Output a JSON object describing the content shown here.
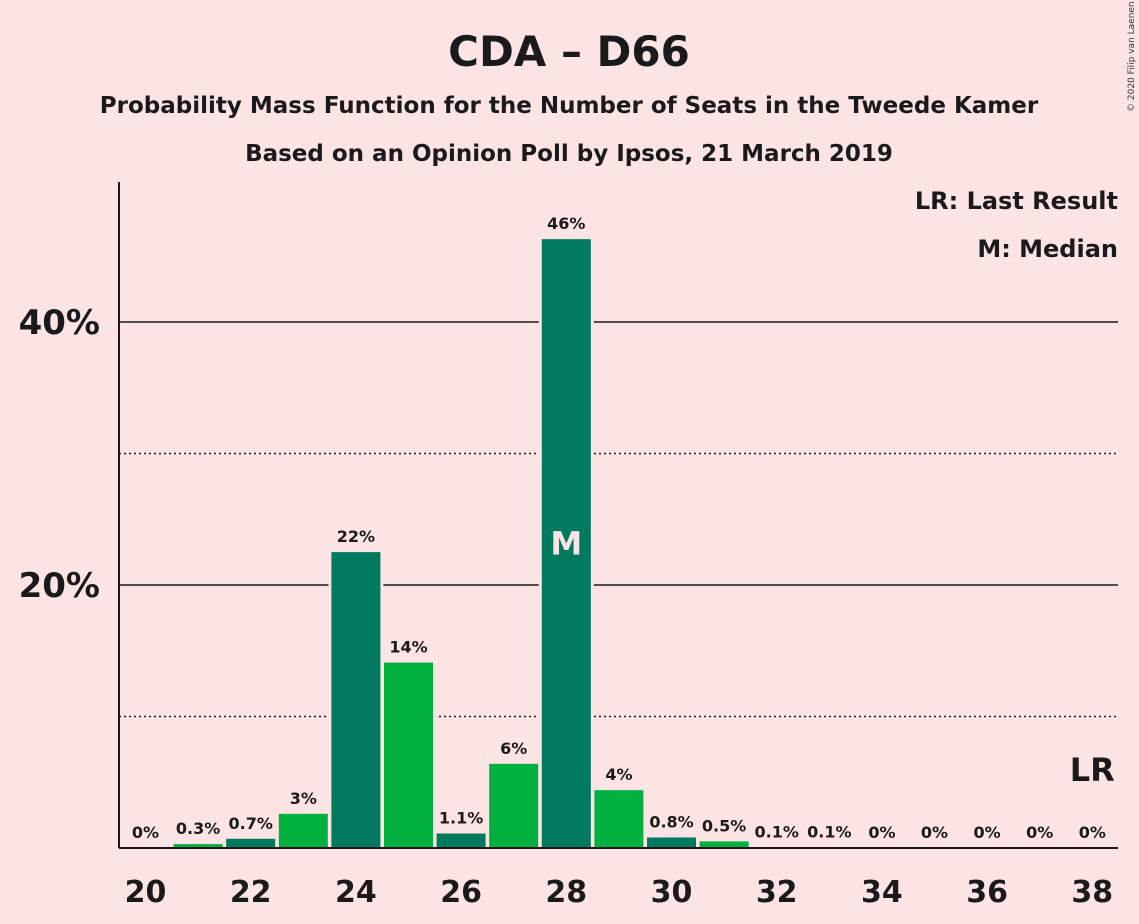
{
  "chart_data": {
    "type": "bar",
    "title": "CDA – D66",
    "subtitle": "Probability Mass Function for the Number of Seats in the Tweede Kamer",
    "subtitle2": "Based on an Opinion Poll by Ipsos, 21 March 2019",
    "copyright": "© 2020 Filip van Laenen",
    "legend": [
      "LR: Last Result",
      "M: Median"
    ],
    "legend_placement": "top-right",
    "x": [
      20,
      21,
      22,
      23,
      24,
      25,
      26,
      27,
      28,
      29,
      30,
      31,
      32,
      33,
      34,
      35,
      36,
      37,
      38
    ],
    "values": [
      0,
      0.3,
      0.7,
      2.6,
      22.5,
      14.1,
      1.1,
      6.4,
      46.3,
      4.4,
      0.8,
      0.5,
      0.05,
      0.05,
      0,
      0,
      0,
      0,
      0
    ],
    "labels": [
      "0%",
      "0.3%",
      "0.7%",
      "3%",
      "22%",
      "14%",
      "1.1%",
      "6%",
      "46%",
      "4%",
      "0.8%",
      "0.5%",
      "0.1%",
      "0.1%",
      "0%",
      "0%",
      "0%",
      "0%",
      "0%"
    ],
    "xticks": [
      20,
      22,
      24,
      26,
      28,
      30,
      32,
      34,
      36,
      38
    ],
    "yticks": [
      {
        "value": 20,
        "label": "20%"
      },
      {
        "value": 40,
        "label": "40%"
      }
    ],
    "minor_gridlines": [
      10,
      30
    ],
    "ylim": [
      0,
      50
    ],
    "median_seat": 28,
    "median_marker": "M",
    "last_result_seat": 38,
    "last_result_marker": "LR",
    "colors": {
      "even": "#007a5e",
      "odd": "#00b140",
      "background": "#fce4e4"
    }
  }
}
